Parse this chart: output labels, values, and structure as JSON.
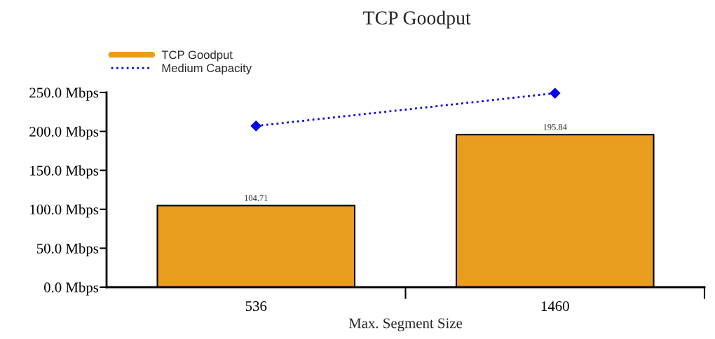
{
  "chart_data": {
    "type": "bar",
    "title": "TCP Goodput",
    "xlabel": "Max. Segment Size",
    "categories": [
      "536",
      "1460"
    ],
    "series": [
      {
        "name": "TCP Goodput",
        "color": "#e99d1e",
        "values": [
          104.71,
          195.84
        ],
        "value_labels": [
          "104.71",
          "195.84"
        ]
      },
      {
        "name": "Medium Capacity",
        "type": "line",
        "color": "#0000ee",
        "values": [
          207,
          249
        ],
        "marker": "diamond",
        "line_style": "dotted"
      }
    ],
    "ylim": [
      0,
      250
    ],
    "yticks": [
      {
        "value": 0,
        "label": "0.0 Mbps"
      },
      {
        "value": 50,
        "label": "50.0 Mbps"
      },
      {
        "value": 100,
        "label": "100.0 Mbps"
      },
      {
        "value": 150,
        "label": "150.0 Mbps"
      },
      {
        "value": 200,
        "label": "200.0 Mbps"
      },
      {
        "value": 250,
        "label": "250.0 Mbps"
      }
    ],
    "grid": false,
    "legend": "top left"
  }
}
